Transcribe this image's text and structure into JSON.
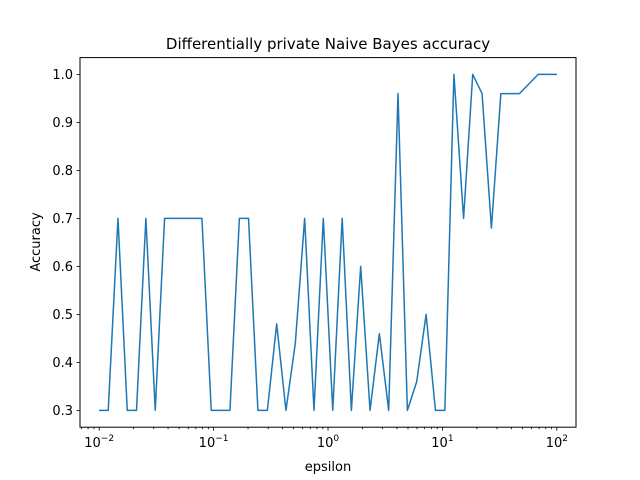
{
  "chart_data": {
    "type": "line",
    "title": "Differentially private Naive Bayes accuracy",
    "xlabel": "epsilon",
    "ylabel": "Accuracy",
    "xscale": "log",
    "xlim": [
      0.0068,
      147
    ],
    "ylim": [
      0.265,
      1.035
    ],
    "grid": false,
    "line_color": "#1f77b4",
    "x_ticks": [
      {
        "value": 0.01,
        "base": "10",
        "exp": "−2"
      },
      {
        "value": 0.1,
        "base": "10",
        "exp": "−1"
      },
      {
        "value": 1,
        "base": "10",
        "exp": "0"
      },
      {
        "value": 10,
        "base": "10",
        "exp": "1"
      },
      {
        "value": 100,
        "base": "10",
        "exp": "2"
      }
    ],
    "y_ticks": [
      {
        "value": 0.3,
        "label": "0.3"
      },
      {
        "value": 0.4,
        "label": "0.4"
      },
      {
        "value": 0.5,
        "label": "0.5"
      },
      {
        "value": 0.6,
        "label": "0.6"
      },
      {
        "value": 0.7,
        "label": "0.7"
      },
      {
        "value": 0.8,
        "label": "0.8"
      },
      {
        "value": 0.9,
        "label": "0.9"
      },
      {
        "value": 1.0,
        "label": "1.0"
      }
    ],
    "x": [
      0.01,
      0.012,
      0.0146,
      0.0176,
      0.0212,
      0.0256,
      0.0309,
      0.0373,
      0.045,
      0.0543,
      0.0655,
      0.0791,
      0.0954,
      0.115,
      0.139,
      0.168,
      0.202,
      0.244,
      0.295,
      0.356,
      0.429,
      0.518,
      0.625,
      0.754,
      0.91,
      1.1,
      1.33,
      1.6,
      1.93,
      2.33,
      2.81,
      3.39,
      4.09,
      4.94,
      5.96,
      7.2,
      8.69,
      10.5,
      12.6,
      15.3,
      18.4,
      22.2,
      26.8,
      32.4,
      39.1,
      47.1,
      56.9,
      68.7,
      82.9,
      100
    ],
    "series": [
      {
        "values": [
          0.3,
          0.3,
          0.7,
          0.3,
          0.3,
          0.7,
          0.3,
          0.7,
          0.7,
          0.7,
          0.7,
          0.7,
          0.3,
          0.3,
          0.3,
          0.7,
          0.7,
          0.3,
          0.3,
          0.48,
          0.3,
          0.44,
          0.7,
          0.3,
          0.7,
          0.3,
          0.7,
          0.3,
          0.6,
          0.3,
          0.46,
          0.3,
          0.96,
          0.3,
          0.36,
          0.5,
          0.3,
          0.3,
          1.0,
          0.7,
          1.0,
          0.96,
          0.68,
          0.96,
          0.96,
          0.96,
          0.98,
          1.0,
          1.0,
          1.0
        ]
      }
    ]
  }
}
